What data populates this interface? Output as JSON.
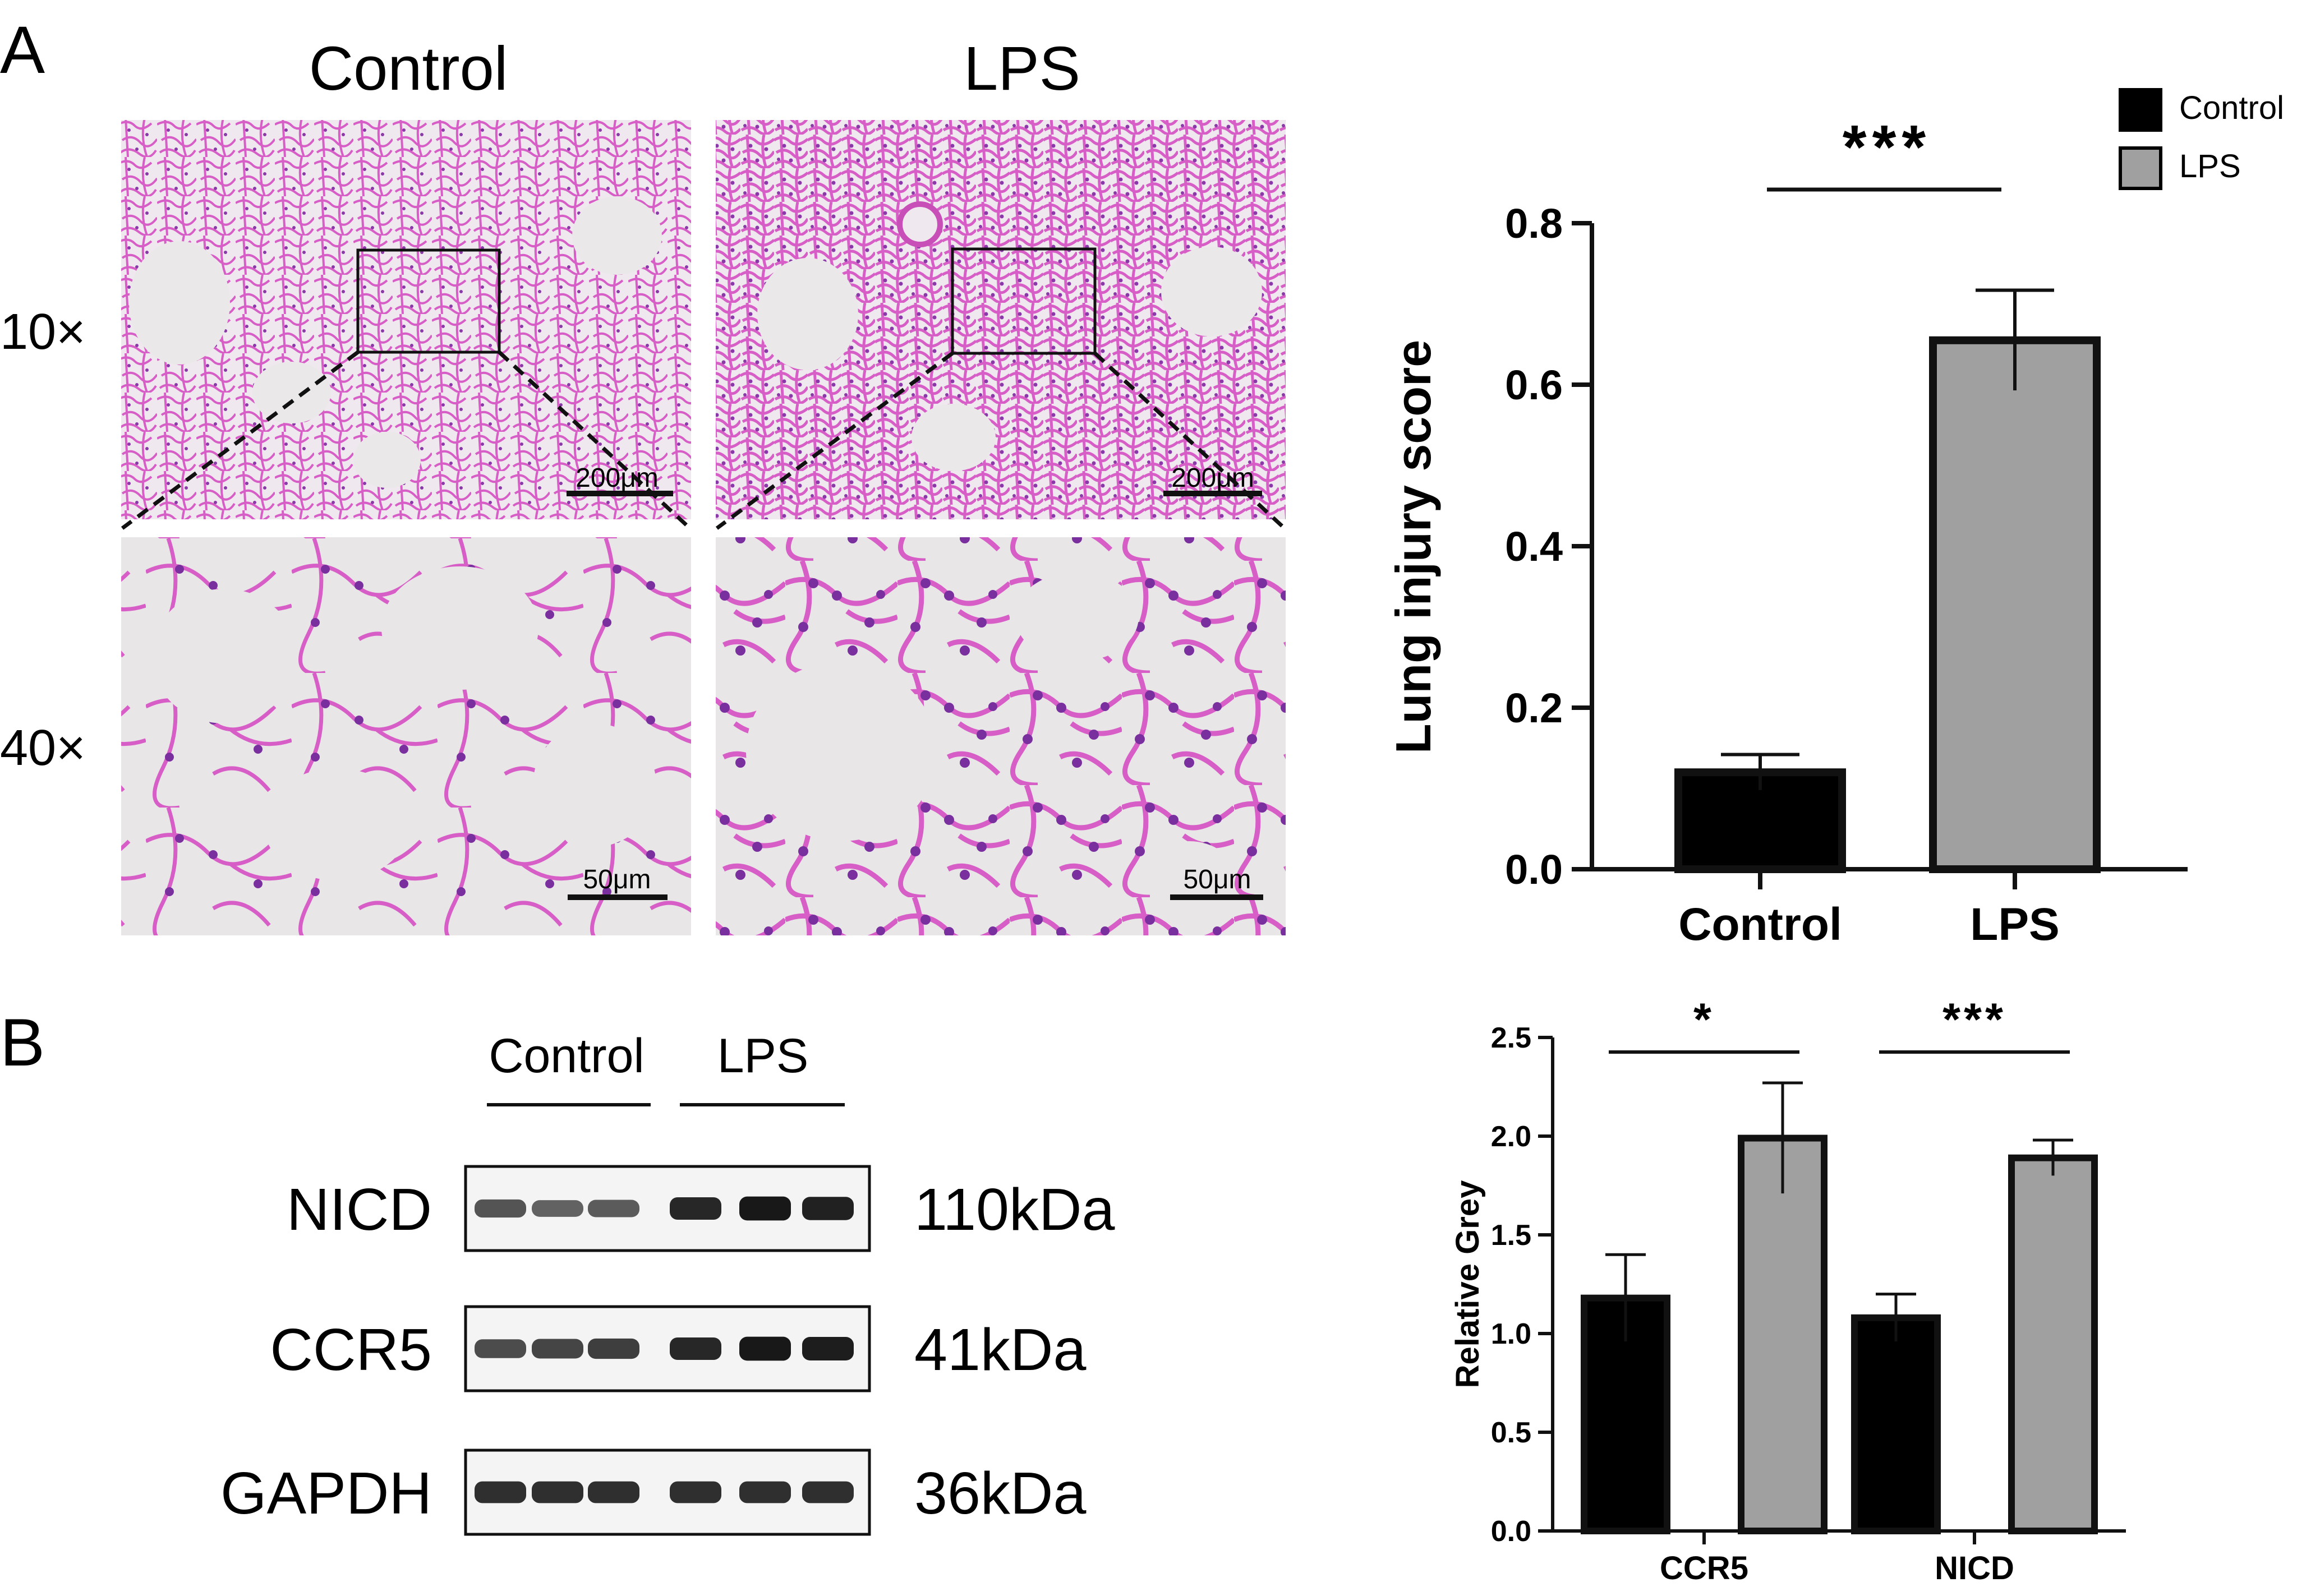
{
  "panel_a": {
    "letter": "A",
    "col_labels": [
      "Control",
      "LPS"
    ],
    "row_labels": [
      "10×",
      "40×"
    ],
    "scale_bars": {
      "top": "200μm",
      "bottom": "50μm"
    }
  },
  "panel_b": {
    "letter": "B",
    "group_labels": [
      "Control",
      "LPS"
    ],
    "bands": [
      {
        "name": "NICD",
        "kda": "110kDa",
        "intensity": [
          0.55,
          0.45,
          0.5,
          0.85,
          0.95,
          0.9
        ]
      },
      {
        "name": "CCR5",
        "kda": "41kDa",
        "intensity": [
          0.6,
          0.65,
          0.7,
          0.85,
          0.95,
          0.92
        ]
      },
      {
        "name": "GAPDH",
        "kda": "36kDa",
        "intensity": [
          0.8,
          0.8,
          0.8,
          0.8,
          0.8,
          0.8
        ]
      }
    ]
  },
  "legend": {
    "items": [
      {
        "label": "Control",
        "color": "#000000"
      },
      {
        "label": "LPS",
        "color": "#a0a0a0"
      }
    ]
  },
  "colors": {
    "control": "#000000",
    "lps": "#a0a0a0",
    "tissue": "#d25cc4",
    "nuclei": "#7a2f9e",
    "background": "#e9e6e8"
  },
  "chart_data": [
    {
      "type": "bar",
      "categories": [
        "Control",
        "LPS"
      ],
      "values": [
        0.12,
        0.655
      ],
      "errors": [
        0.022,
        0.062
      ],
      "ylabel": "Lung injury score",
      "ylim": [
        0,
        0.8
      ],
      "yticks": [
        "0.0",
        "0.2",
        "0.4",
        "0.6",
        "0.8"
      ],
      "significance": "***"
    },
    {
      "type": "bar",
      "categories": [
        "CCR5",
        "NICD"
      ],
      "series": [
        {
          "name": "Control",
          "values": [
            1.18,
            1.08
          ],
          "errors": [
            0.22,
            0.12
          ]
        },
        {
          "name": "LPS",
          "values": [
            1.99,
            1.89
          ],
          "errors": [
            0.28,
            0.09
          ]
        }
      ],
      "ylabel": "Relative Grey",
      "ylim": [
        0,
        2.5
      ],
      "yticks": [
        "0.0",
        "0.5",
        "1.0",
        "1.5",
        "2.0",
        "2.5"
      ],
      "significance": [
        "*",
        "***"
      ]
    }
  ]
}
